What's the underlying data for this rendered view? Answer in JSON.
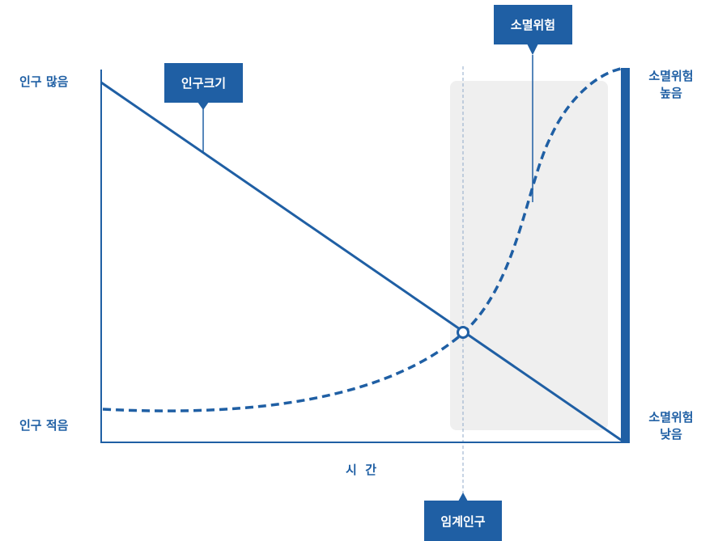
{
  "colors": {
    "primary": "#1f5fa4",
    "critical_zone": "#efefef",
    "guide_line": "#8fa8c8",
    "background": "#ffffff"
  },
  "left_axis": {
    "top_label": "인구 많음",
    "bottom_label": "인구 적음"
  },
  "right_axis": {
    "top_label_line1": "소멸위험",
    "top_label_line2": "높음",
    "bottom_label_line1": "소멸위험",
    "bottom_label_line2": "낮음"
  },
  "x_axis": {
    "label": "시  간"
  },
  "callouts": {
    "population_size": "인구크기",
    "extinction_risk": "소멸위험",
    "critical_population": "임계인구"
  }
}
